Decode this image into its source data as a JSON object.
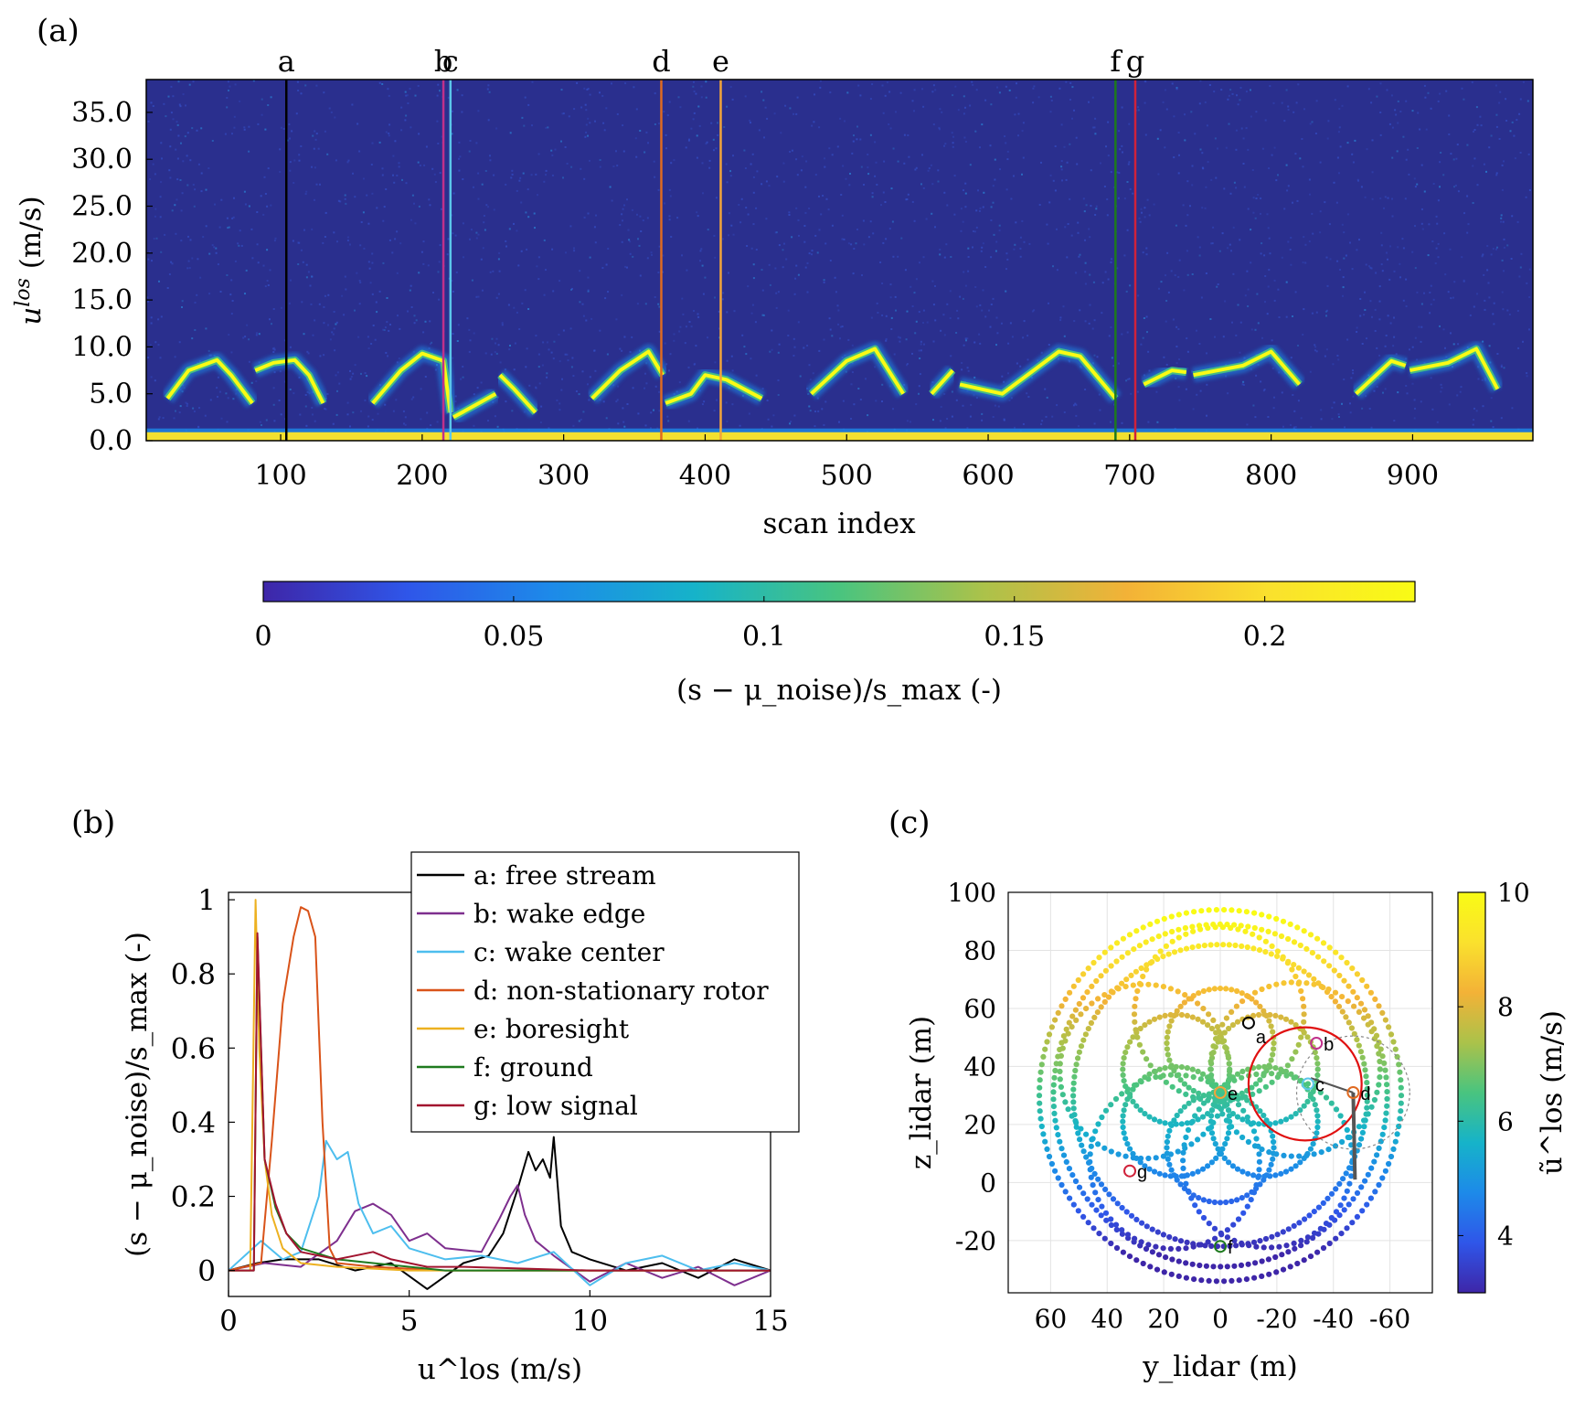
{
  "figure": {
    "panel_labels": [
      "(a)",
      "(b)",
      "(c)"
    ]
  },
  "chart_data": [
    {
      "type": "heatmap",
      "panel": "(a)",
      "xlabel": "scan index",
      "ylabel": "u^los (m/s)",
      "xlim": [
        5,
        985
      ],
      "ylim": [
        0,
        38.5
      ],
      "x_ticks": [
        100,
        200,
        300,
        400,
        500,
        600,
        700,
        800,
        900
      ],
      "y_ticks": [
        "0.0",
        "5.0",
        "10.0",
        "15.0",
        "20.0",
        "25.0",
        "30.0",
        "35.0"
      ],
      "colorbar": {
        "label": "(s − μ_noise)/s_max  (-)",
        "range": [
          0,
          0.23
        ],
        "ticks": [
          "0",
          "0.05",
          "0.1",
          "0.15",
          "0.2"
        ],
        "colormap": [
          "#3e26a8",
          "#2f56e9",
          "#1d8ae9",
          "#16b3c9",
          "#49c47f",
          "#abc24a",
          "#f3b237",
          "#fae12d",
          "#f9fb15"
        ]
      },
      "background_color": "#2a2f8e",
      "markers": [
        {
          "label": "a",
          "scan": 104,
          "color": "#000000"
        },
        {
          "label": "b",
          "scan": 215,
          "color": "#c0308a"
        },
        {
          "label": "c",
          "scan": 220,
          "color": "#5bc6ea"
        },
        {
          "label": "d",
          "scan": 369,
          "color": "#e06a20"
        },
        {
          "label": "e",
          "scan": 411,
          "color": "#f2a43a"
        },
        {
          "label": "f",
          "scan": 690,
          "color": "#1d7a1d"
        },
        {
          "label": "g",
          "scan": 704,
          "color": "#d0223a"
        }
      ],
      "ridge_segments": [
        {
          "x": [
            20,
            35,
            55,
            65,
            80
          ],
          "y": [
            4.5,
            7.5,
            8.6,
            7.0,
            4.0
          ]
        },
        {
          "x": [
            82,
            95,
            110,
            120,
            130
          ],
          "y": [
            7.5,
            8.3,
            8.6,
            7.0,
            4.0
          ]
        },
        {
          "x": [
            165,
            185,
            200,
            215,
            220
          ],
          "y": [
            4.0,
            7.5,
            9.3,
            8.5,
            3.0
          ]
        },
        {
          "x": [
            222,
            240,
            252
          ],
          "y": [
            2.5,
            4.0,
            5.0
          ]
        },
        {
          "x": [
            255,
            265,
            280
          ],
          "y": [
            7.0,
            5.5,
            3.0
          ]
        },
        {
          "x": [
            320,
            340,
            360,
            370
          ],
          "y": [
            4.5,
            7.5,
            9.5,
            7.0
          ]
        },
        {
          "x": [
            372,
            390,
            400,
            415,
            440
          ],
          "y": [
            4.0,
            5.0,
            7.0,
            6.5,
            4.5
          ]
        },
        {
          "x": [
            475,
            500,
            520,
            540
          ],
          "y": [
            5.0,
            8.5,
            9.8,
            5.0
          ]
        },
        {
          "x": [
            560,
            575
          ],
          "y": [
            5.0,
            7.5
          ]
        },
        {
          "x": [
            580,
            610,
            650,
            665,
            690
          ],
          "y": [
            6.0,
            5.0,
            9.5,
            9.0,
            4.5
          ]
        },
        {
          "x": [
            710,
            730,
            740
          ],
          "y": [
            6.0,
            7.5,
            7.3
          ]
        },
        {
          "x": [
            745,
            780,
            800,
            820
          ],
          "y": [
            7.0,
            8.0,
            9.5,
            6.0
          ]
        },
        {
          "x": [
            860,
            885,
            895
          ],
          "y": [
            5.0,
            8.5,
            8.0
          ]
        },
        {
          "x": [
            898,
            925,
            945,
            960
          ],
          "y": [
            7.5,
            8.3,
            9.8,
            5.5
          ]
        }
      ]
    },
    {
      "type": "line",
      "panel": "(b)",
      "xlabel": "u^los (m/s)",
      "ylabel": "(s − μ_noise)/s_max  (-)",
      "xlim": [
        0,
        15
      ],
      "ylim": [
        -0.07,
        1.02
      ],
      "x_ticks": [
        "0",
        "5",
        "10",
        "15"
      ],
      "y_ticks": [
        "0",
        "0.2",
        "0.4",
        "0.6",
        "0.8",
        "1"
      ],
      "legend_position": "top-right",
      "series": [
        {
          "name": "a:  free stream",
          "color": "#000000",
          "x": [
            0,
            0.8,
            1.5,
            2.5,
            3.5,
            4.5,
            5.5,
            6.5,
            7.2,
            7.6,
            8.0,
            8.3,
            8.5,
            8.7,
            8.9,
            9.0,
            9.2,
            9.5,
            10.0,
            11.0,
            12.0,
            13.0,
            14.0,
            15.0
          ],
          "y": [
            0,
            0.02,
            0.03,
            0.03,
            0.0,
            0.02,
            -0.05,
            0.02,
            0.04,
            0.1,
            0.22,
            0.32,
            0.27,
            0.3,
            0.25,
            0.36,
            0.12,
            0.05,
            0.03,
            0.0,
            0.02,
            -0.02,
            0.03,
            0.0
          ]
        },
        {
          "name": "b:  wake edge",
          "color": "#7e2f8e",
          "x": [
            0,
            1.0,
            2.0,
            3.0,
            3.5,
            4.0,
            4.5,
            5.0,
            5.5,
            6.0,
            7.0,
            7.5,
            7.8,
            8.0,
            8.2,
            8.5,
            9.0,
            10.0,
            11.0,
            12.0,
            13.0,
            14.0,
            15.0
          ],
          "y": [
            0,
            0.02,
            0.01,
            0.08,
            0.16,
            0.18,
            0.15,
            0.08,
            0.1,
            0.06,
            0.05,
            0.14,
            0.2,
            0.23,
            0.15,
            0.08,
            0.04,
            -0.03,
            0.02,
            -0.02,
            0.01,
            -0.04,
            0.0
          ]
        },
        {
          "name": "c:  wake center",
          "color": "#4dbeee",
          "x": [
            0,
            0.9,
            1.5,
            2.0,
            2.5,
            2.7,
            3.0,
            3.3,
            3.6,
            4.0,
            4.5,
            5.0,
            6.0,
            7.0,
            8.0,
            9.0,
            10.0,
            11.0,
            12.0,
            13.0,
            14.0,
            15.0
          ],
          "y": [
            0,
            0.08,
            0.03,
            0.05,
            0.2,
            0.35,
            0.3,
            0.32,
            0.18,
            0.1,
            0.12,
            0.06,
            0.03,
            0.04,
            0.02,
            0.05,
            -0.04,
            0.02,
            0.04,
            0.0,
            0.02,
            0.0
          ]
        },
        {
          "name": "d:  non-stationary rotor",
          "color": "#d95319",
          "x": [
            0,
            0.9,
            1.2,
            1.5,
            1.8,
            2.0,
            2.2,
            2.4,
            2.6,
            2.8,
            3.0,
            4.0,
            6.0,
            10.0,
            15.0
          ],
          "y": [
            0,
            0.02,
            0.35,
            0.72,
            0.9,
            0.98,
            0.97,
            0.9,
            0.4,
            0.06,
            0.02,
            0.01,
            0.0,
            0.0,
            0.0
          ]
        },
        {
          "name": "e:  boresight",
          "color": "#edb120",
          "x": [
            0,
            0.6,
            0.75,
            0.85,
            1.0,
            1.2,
            1.5,
            2.0,
            3.0,
            5.0,
            10.0,
            15.0
          ],
          "y": [
            0,
            0.0,
            1.0,
            0.6,
            0.3,
            0.15,
            0.06,
            0.02,
            0.01,
            0.0,
            0.0,
            0.0
          ]
        },
        {
          "name": "f:  ground",
          "color": "#1f7a1f",
          "x": [
            0,
            0.7,
            0.8,
            1.0,
            1.3,
            1.6,
            2.0,
            3.0,
            4.0,
            6.0,
            10.0,
            15.0
          ],
          "y": [
            0,
            0.0,
            0.9,
            0.3,
            0.17,
            0.1,
            0.06,
            0.03,
            0.02,
            0.0,
            0.0,
            0.0
          ]
        },
        {
          "name": "g:  low signal",
          "color": "#a2142f",
          "x": [
            0,
            0.7,
            0.8,
            1.0,
            1.3,
            1.6,
            2.0,
            3.0,
            4.0,
            4.5,
            5.5,
            6.5,
            10.0,
            15.0
          ],
          "y": [
            0,
            0.0,
            0.91,
            0.3,
            0.18,
            0.1,
            0.05,
            0.03,
            0.05,
            0.03,
            0.01,
            0.01,
            0.0,
            0.0
          ]
        }
      ]
    },
    {
      "type": "scatter",
      "panel": "(c)",
      "xlabel": "y_lidar (m)",
      "ylabel": "z_lidar (m)",
      "xlim": [
        75,
        -75
      ],
      "ylim": [
        -38,
        100
      ],
      "x_ticks": [
        "60",
        "40",
        "20",
        "0",
        "-20",
        "-40",
        "-60"
      ],
      "y_ticks": [
        "100",
        "80",
        "60",
        "40",
        "20",
        "0",
        "-20"
      ],
      "grid": true,
      "colorbar": {
        "label": "ũ^los (m/s)",
        "range": [
          3,
          10
        ],
        "ticks": [
          "10",
          "8",
          "6",
          "4"
        ],
        "colormap": [
          "#3e26a8",
          "#2f56e9",
          "#1d8ae9",
          "#16b3c9",
          "#49c47f",
          "#abc24a",
          "#f3b237",
          "#fae12d",
          "#f9fb15"
        ]
      },
      "scan_pattern": {
        "center": [
          0,
          30
        ],
        "radius": 64,
        "inner_circles": 6,
        "inner_radius": 18
      },
      "points": [
        {
          "label": "a",
          "y": -10,
          "z": 55,
          "color": "#000000"
        },
        {
          "label": "b",
          "y": -34,
          "z": 48,
          "color": "#c0308a"
        },
        {
          "label": "c",
          "y": -31,
          "z": 34,
          "color": "#5bc6ea"
        },
        {
          "label": "d",
          "y": -47,
          "z": 31,
          "color": "#e06a20"
        },
        {
          "label": "e",
          "y": 0,
          "z": 31,
          "color": "#f2a43a"
        },
        {
          "label": "f",
          "y": 0,
          "z": -22,
          "color": "#1d7a1d"
        },
        {
          "label": "g",
          "y": 32,
          "z": 4,
          "color": "#d0223a"
        }
      ],
      "rotor_circle": {
        "center": [
          -30,
          34
        ],
        "radius": 20,
        "color": "#e01010"
      }
    }
  ]
}
